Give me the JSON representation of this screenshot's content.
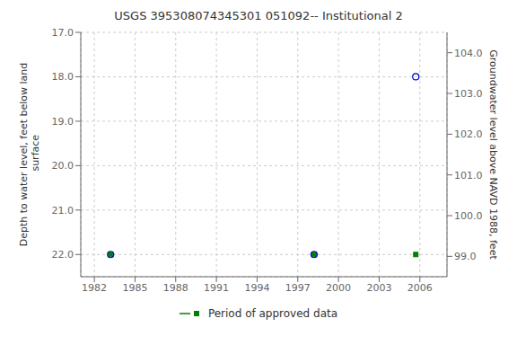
{
  "chart_data": {
    "type": "scatter",
    "title": "USGS 395308074345301 051092-- Institutional 2",
    "y_label": "Depth to water level, feet below land\n surface",
    "y2_label": "Groundwater level above NAVD 1988, feet",
    "x": [
      1983.2,
      1998.2,
      2005.7
    ],
    "series": [
      {
        "color": "#0000cc",
        "marker": "open_circle",
        "values": [
          22.0,
          22.0,
          18.0
        ]
      },
      {
        "name": "Period of approved data",
        "color": "#008000",
        "marker": "square",
        "values": [
          22.0,
          22.0,
          22.0
        ]
      }
    ],
    "xlim": [
      1981.0,
      2008.0
    ],
    "xticks": [
      1982,
      1985,
      1988,
      1991,
      1994,
      1997,
      2000,
      2003,
      2006
    ],
    "ylim": [
      22.5,
      17.0
    ],
    "yticks": [
      {
        "value": 17.0,
        "label": "17.0"
      },
      {
        "value": 18.0,
        "label": "18.0"
      },
      {
        "value": 19.0,
        "label": "19.0"
      },
      {
        "value": 20.0,
        "label": "20.0"
      },
      {
        "value": 21.0,
        "label": "21.0"
      },
      {
        "value": 22.0,
        "label": "22.0"
      }
    ],
    "y2lim": [
      98.5,
      104.5
    ],
    "y2ticks": [
      {
        "value": 99.0,
        "label": "99.0"
      },
      {
        "value": 100.0,
        "label": "100.0"
      },
      {
        "value": 101.0,
        "label": "101.0"
      },
      {
        "value": 102.0,
        "label": "102.0"
      },
      {
        "value": 103.0,
        "label": "103.0"
      },
      {
        "value": 104.0,
        "label": "104.0"
      }
    ],
    "grid": true
  }
}
